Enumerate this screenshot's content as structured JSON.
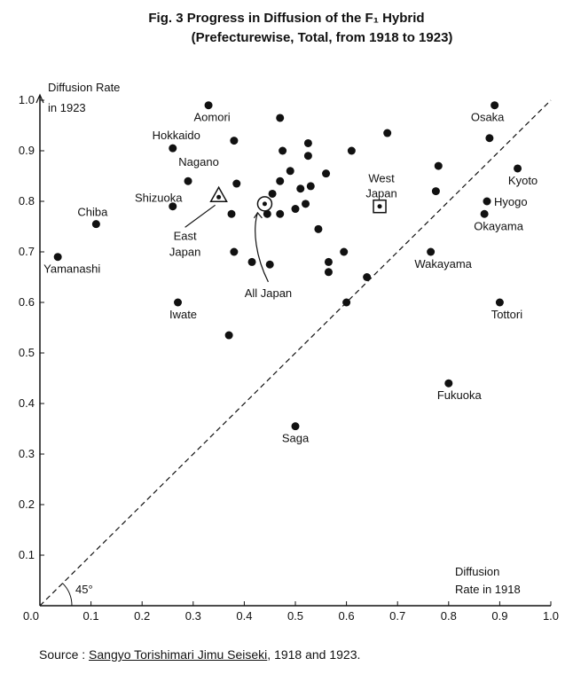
{
  "chart_data": {
    "type": "scatter",
    "title": "Fig. 3 Progress in Diffusion of the F₁ Hybrid",
    "subtitle": "(Prefecturewise, Total, from 1918 to 1923)",
    "xlabel": [
      "Diffusion",
      "Rate in 1918"
    ],
    "ylabel": [
      "Diffusion Rate",
      "in 1923"
    ],
    "xlim": [
      0,
      1.0
    ],
    "ylim": [
      0,
      1.0
    ],
    "xticks": [
      "0.0",
      "0.1",
      "0.2",
      "0.3",
      "0.4",
      "0.5",
      "0.6",
      "0.7",
      "0.8",
      "0.9",
      "1.0"
    ],
    "yticks": [
      "0.0",
      "0.1",
      "0.2",
      "0.3",
      "0.4",
      "0.5",
      "0.6",
      "0.7",
      "0.8",
      "0.9",
      "1.0"
    ],
    "grid": false,
    "diagonal_label": "45°",
    "points": [
      {
        "x": 0.035,
        "y": 0.69,
        "label": "Yamanashi"
      },
      {
        "x": 0.11,
        "y": 0.755,
        "label": "Chiba"
      },
      {
        "x": 0.26,
        "y": 0.79,
        "label": "Shizuoka"
      },
      {
        "x": 0.26,
        "y": 0.905,
        "label": "Hokkaido"
      },
      {
        "x": 0.27,
        "y": 0.6,
        "label": "Iwate"
      },
      {
        "x": 0.29,
        "y": 0.84,
        "label": "Nagano"
      },
      {
        "x": 0.33,
        "y": 0.99,
        "label": "Aomori"
      },
      {
        "x": 0.37,
        "y": 0.535,
        "label": ""
      },
      {
        "x": 0.375,
        "y": 0.775,
        "label": ""
      },
      {
        "x": 0.38,
        "y": 0.92,
        "label": ""
      },
      {
        "x": 0.38,
        "y": 0.7,
        "label": ""
      },
      {
        "x": 0.385,
        "y": 0.835,
        "label": ""
      },
      {
        "x": 0.415,
        "y": 0.68,
        "label": ""
      },
      {
        "x": 0.445,
        "y": 0.775,
        "label": ""
      },
      {
        "x": 0.45,
        "y": 0.675,
        "label": ""
      },
      {
        "x": 0.455,
        "y": 0.815,
        "label": ""
      },
      {
        "x": 0.47,
        "y": 0.775,
        "label": ""
      },
      {
        "x": 0.47,
        "y": 0.84,
        "label": ""
      },
      {
        "x": 0.47,
        "y": 0.965,
        "label": ""
      },
      {
        "x": 0.475,
        "y": 0.9,
        "label": ""
      },
      {
        "x": 0.49,
        "y": 0.86,
        "label": ""
      },
      {
        "x": 0.5,
        "y": 0.785,
        "label": ""
      },
      {
        "x": 0.51,
        "y": 0.825,
        "label": ""
      },
      {
        "x": 0.52,
        "y": 0.795,
        "label": ""
      },
      {
        "x": 0.525,
        "y": 0.89,
        "label": ""
      },
      {
        "x": 0.525,
        "y": 0.915,
        "label": ""
      },
      {
        "x": 0.53,
        "y": 0.83,
        "label": ""
      },
      {
        "x": 0.545,
        "y": 0.745,
        "label": ""
      },
      {
        "x": 0.56,
        "y": 0.855,
        "label": ""
      },
      {
        "x": 0.565,
        "y": 0.68,
        "label": ""
      },
      {
        "x": 0.565,
        "y": 0.66,
        "label": ""
      },
      {
        "x": 0.595,
        "y": 0.7,
        "label": ""
      },
      {
        "x": 0.6,
        "y": 0.6,
        "label": ""
      },
      {
        "x": 0.61,
        "y": 0.9,
        "label": ""
      },
      {
        "x": 0.64,
        "y": 0.65,
        "label": ""
      },
      {
        "x": 0.68,
        "y": 0.935,
        "label": ""
      },
      {
        "x": 0.5,
        "y": 0.355,
        "label": "Saga"
      },
      {
        "x": 0.765,
        "y": 0.7,
        "label": "Wakayama"
      },
      {
        "x": 0.775,
        "y": 0.82,
        "label": ""
      },
      {
        "x": 0.78,
        "y": 0.87,
        "label": ""
      },
      {
        "x": 0.8,
        "y": 0.44,
        "label": "Fukuoka"
      },
      {
        "x": 0.87,
        "y": 0.775,
        "label": "Okayama"
      },
      {
        "x": 0.875,
        "y": 0.8,
        "label": "Hyogo"
      },
      {
        "x": 0.88,
        "y": 0.925,
        "label": ""
      },
      {
        "x": 0.89,
        "y": 0.99,
        "label": "Osaka"
      },
      {
        "x": 0.9,
        "y": 0.6,
        "label": "Tottori"
      },
      {
        "x": 0.935,
        "y": 0.865,
        "label": "Kyoto"
      }
    ],
    "regions": [
      {
        "name": "East Japan",
        "x": 0.35,
        "y": 0.81,
        "marker": "triangle",
        "label_lines": [
          "East",
          "Japan"
        ]
      },
      {
        "name": "All Japan",
        "x": 0.44,
        "y": 0.795,
        "marker": "circle",
        "label_lines": [
          "All Japan"
        ]
      },
      {
        "name": "West Japan",
        "x": 0.665,
        "y": 0.79,
        "marker": "square",
        "label_lines": [
          "West",
          "Japan"
        ]
      }
    ]
  },
  "source": {
    "prefix": "Source : ",
    "title": "Sangyo Torishimari Jimu Seiseki",
    "suffix": ", 1918 and 1923."
  }
}
